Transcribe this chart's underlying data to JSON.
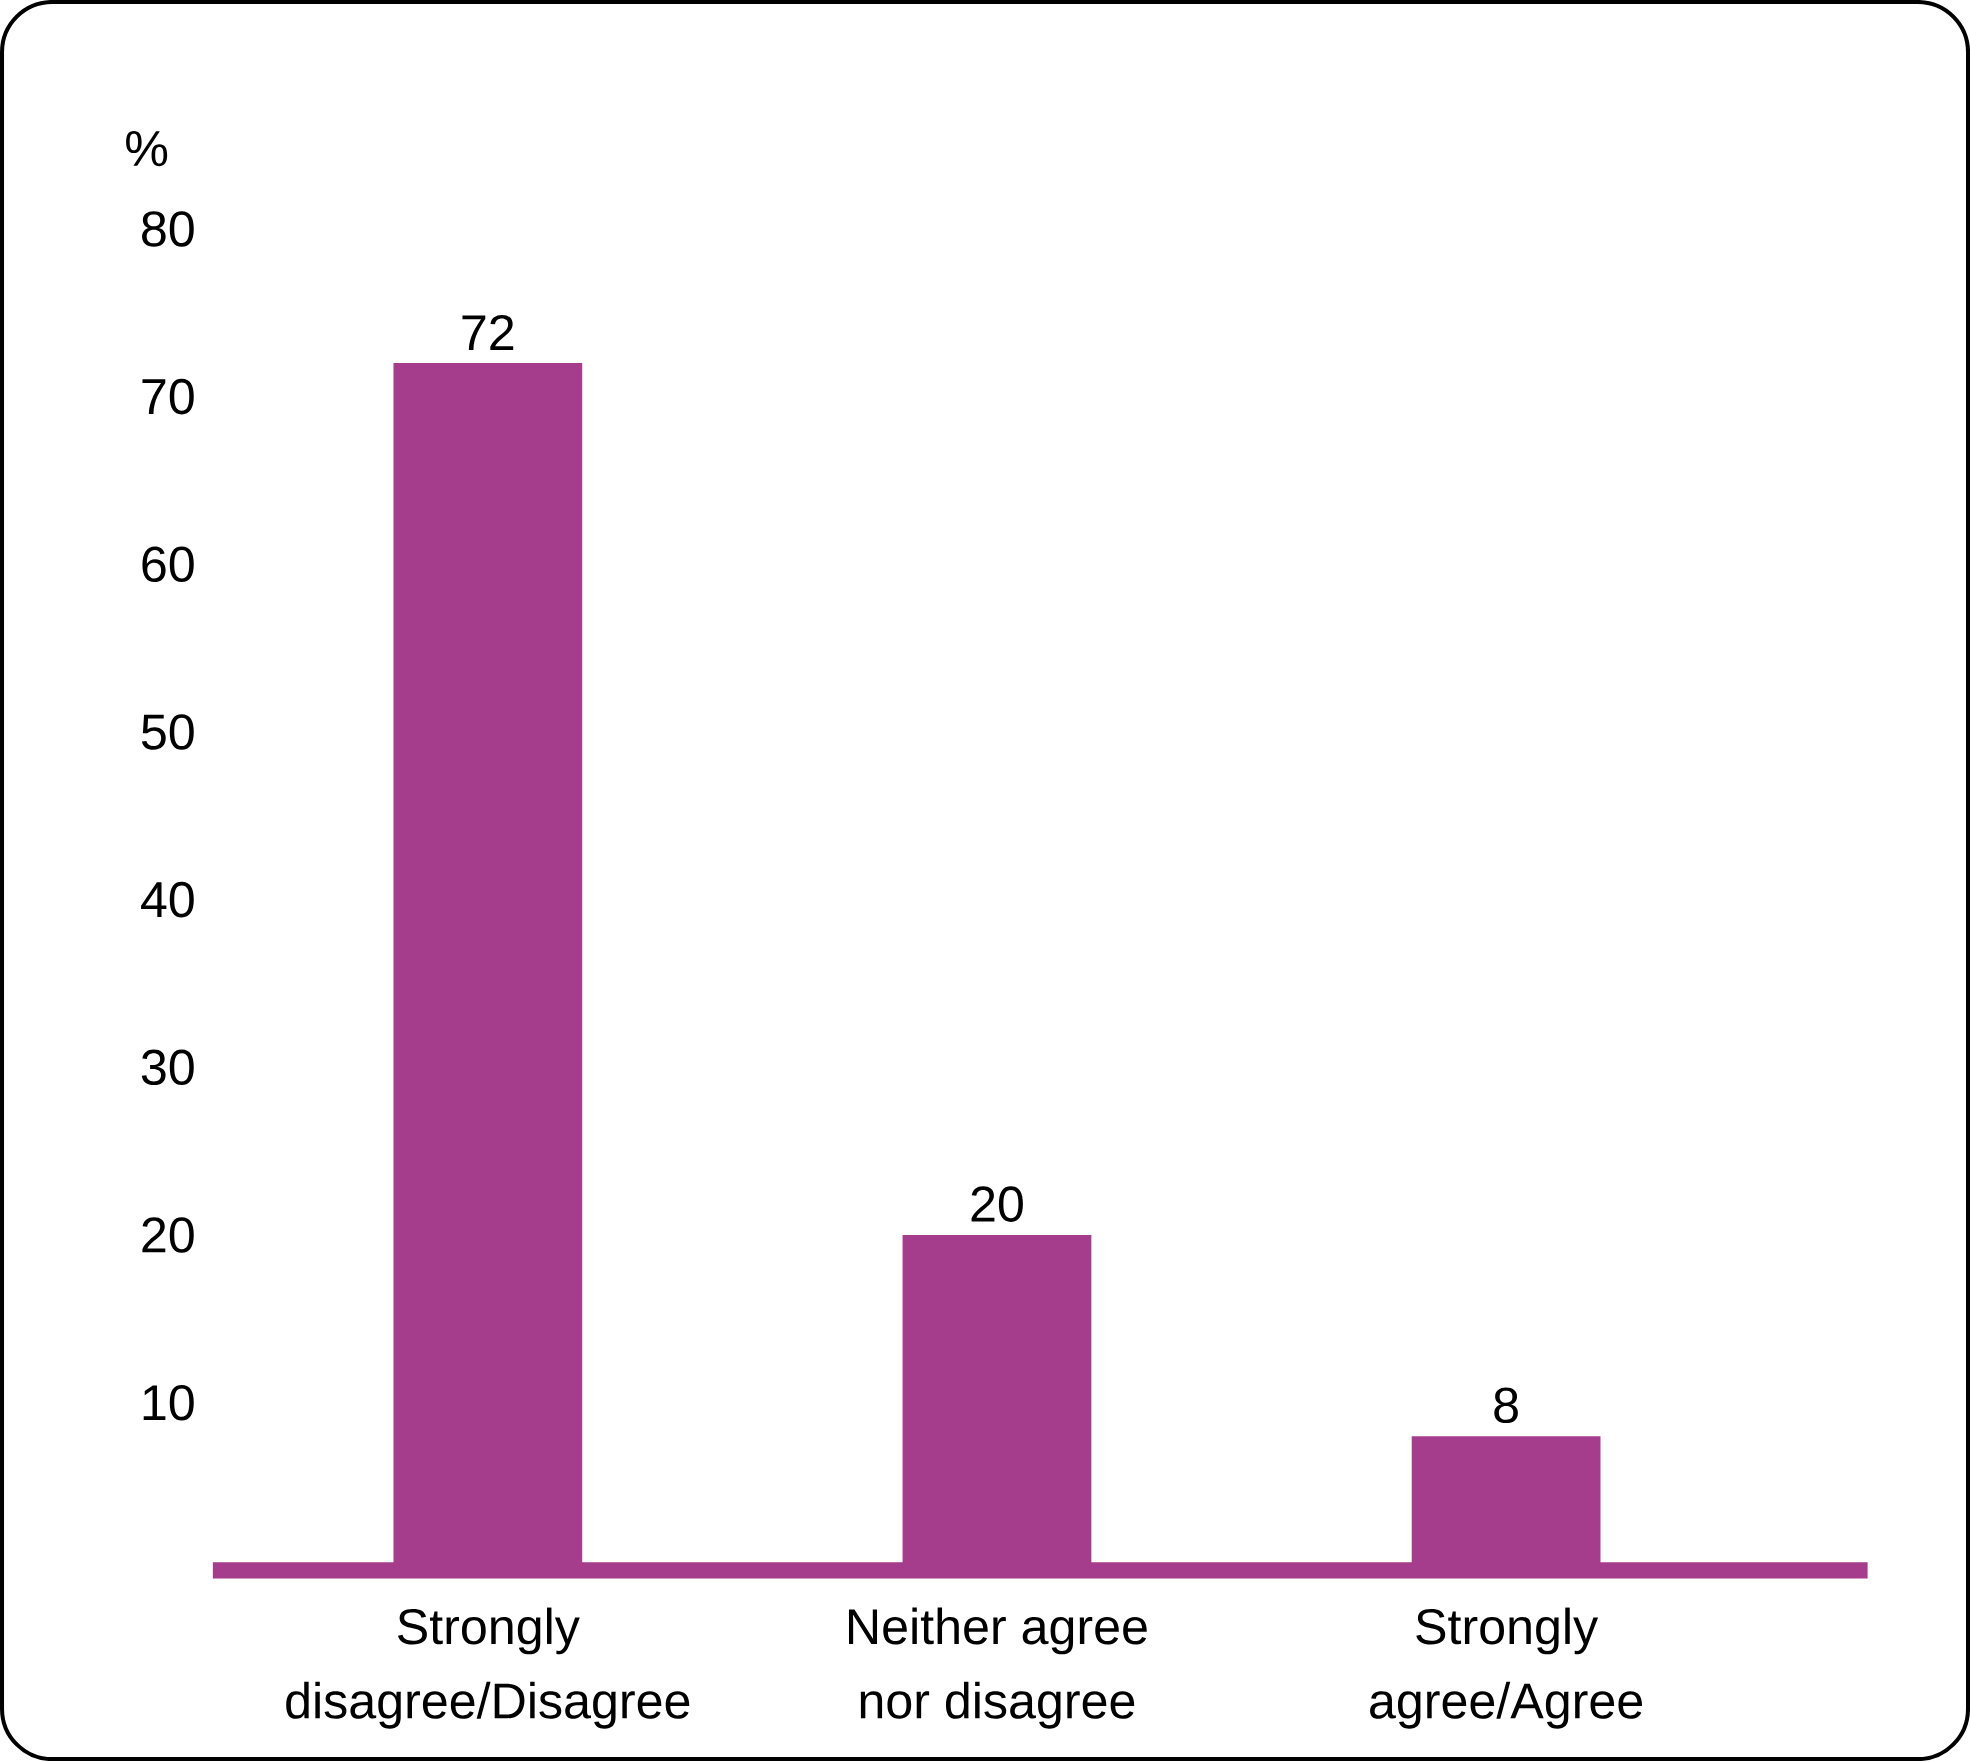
{
  "chart_data": {
    "type": "bar",
    "ylabel": "%",
    "categories": [
      "Strongly disagree/Disagree",
      "Neither agree nor disagree",
      "Strongly agree/Agree"
    ],
    "values": [
      72,
      20,
      8
    ],
    "color": "#a53c8c",
    "ylim": [
      0,
      80
    ],
    "yticks": [
      10,
      20,
      30,
      40,
      50,
      60,
      70,
      80
    ],
    "data_labels": true
  }
}
